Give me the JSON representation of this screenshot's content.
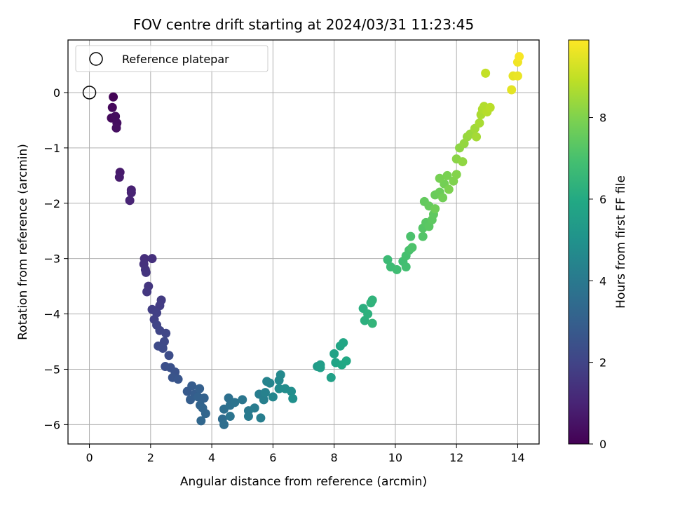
{
  "chart_data": {
    "type": "scatter",
    "title": "FOV centre drift starting at 2024/03/31 11:23:45",
    "xlabel": "Angular distance from reference (arcmin)",
    "ylabel": "Rotation from reference (arcmin)",
    "xlim": [
      -0.7,
      14.7
    ],
    "ylim": [
      -6.35,
      0.95
    ],
    "xticks": [
      0,
      2,
      4,
      6,
      8,
      10,
      12,
      14
    ],
    "yticks": [
      -6,
      -5,
      -4,
      -3,
      -2,
      -1,
      0
    ],
    "grid": true,
    "legend": {
      "placement": "top-left",
      "entries": [
        {
          "label": "Reference platepar",
          "marker": "open-circle"
        }
      ]
    },
    "reference_point": {
      "x": 0,
      "y": 0
    },
    "colorbar": {
      "label": "Hours from first FF file",
      "range": [
        0,
        9.9
      ],
      "ticks": [
        0,
        2,
        4,
        6,
        8
      ],
      "colormap": "viridis"
    },
    "series": [
      {
        "points": [
          {
            "x": 0.78,
            "y": -0.08,
            "h": 0.1
          },
          {
            "x": 0.75,
            "y": -0.27,
            "h": 0.2
          },
          {
            "x": 0.72,
            "y": -0.46,
            "h": 0.25
          },
          {
            "x": 0.85,
            "y": -0.43,
            "h": 0.3
          },
          {
            "x": 0.9,
            "y": -0.55,
            "h": 0.35
          },
          {
            "x": 0.88,
            "y": -0.64,
            "h": 0.4
          },
          {
            "x": 1.0,
            "y": -1.44,
            "h": 0.7
          },
          {
            "x": 0.98,
            "y": -1.53,
            "h": 0.75
          },
          {
            "x": 1.37,
            "y": -1.76,
            "h": 0.9
          },
          {
            "x": 1.37,
            "y": -1.81,
            "h": 0.95
          },
          {
            "x": 1.32,
            "y": -1.95,
            "h": 1.0
          },
          {
            "x": 1.8,
            "y": -3.0,
            "h": 1.3
          },
          {
            "x": 2.05,
            "y": -3.0,
            "h": 1.35
          },
          {
            "x": 1.78,
            "y": -3.1,
            "h": 1.4
          },
          {
            "x": 1.83,
            "y": -3.2,
            "h": 1.45
          },
          {
            "x": 1.85,
            "y": -3.25,
            "h": 1.5
          },
          {
            "x": 1.93,
            "y": -3.5,
            "h": 1.55
          },
          {
            "x": 1.88,
            "y": -3.6,
            "h": 1.6
          },
          {
            "x": 2.35,
            "y": -3.75,
            "h": 1.7
          },
          {
            "x": 2.3,
            "y": -3.85,
            "h": 1.75
          },
          {
            "x": 2.05,
            "y": -3.92,
            "h": 1.8
          },
          {
            "x": 2.2,
            "y": -3.98,
            "h": 1.85
          },
          {
            "x": 2.12,
            "y": -4.1,
            "h": 1.9
          },
          {
            "x": 2.2,
            "y": -4.2,
            "h": 2.0
          },
          {
            "x": 2.3,
            "y": -4.3,
            "h": 2.05
          },
          {
            "x": 2.5,
            "y": -4.35,
            "h": 2.1
          },
          {
            "x": 2.45,
            "y": -4.5,
            "h": 2.15
          },
          {
            "x": 2.25,
            "y": -4.58,
            "h": 2.2
          },
          {
            "x": 2.4,
            "y": -4.62,
            "h": 2.25
          },
          {
            "x": 2.6,
            "y": -4.75,
            "h": 2.3
          },
          {
            "x": 2.48,
            "y": -4.95,
            "h": 2.4
          },
          {
            "x": 2.65,
            "y": -4.97,
            "h": 2.45
          },
          {
            "x": 2.8,
            "y": -5.05,
            "h": 2.5
          },
          {
            "x": 2.72,
            "y": -5.15,
            "h": 2.55
          },
          {
            "x": 2.9,
            "y": -5.18,
            "h": 2.6
          },
          {
            "x": 3.2,
            "y": -5.4,
            "h": 2.8
          },
          {
            "x": 3.35,
            "y": -5.3,
            "h": 2.85
          },
          {
            "x": 3.45,
            "y": -5.45,
            "h": 2.9
          },
          {
            "x": 3.3,
            "y": -5.55,
            "h": 2.95
          },
          {
            "x": 3.6,
            "y": -5.35,
            "h": 3.0
          },
          {
            "x": 3.55,
            "y": -5.5,
            "h": 3.05
          },
          {
            "x": 3.75,
            "y": -5.52,
            "h": 3.1
          },
          {
            "x": 3.62,
            "y": -5.65,
            "h": 3.15
          },
          {
            "x": 3.7,
            "y": -5.7,
            "h": 3.2
          },
          {
            "x": 3.8,
            "y": -5.8,
            "h": 3.25
          },
          {
            "x": 3.65,
            "y": -5.93,
            "h": 3.3
          },
          {
            "x": 4.35,
            "y": -5.9,
            "h": 3.5
          },
          {
            "x": 4.4,
            "y": -6.0,
            "h": 3.55
          },
          {
            "x": 4.4,
            "y": -5.72,
            "h": 3.6
          },
          {
            "x": 4.55,
            "y": -5.52,
            "h": 3.65
          },
          {
            "x": 4.6,
            "y": -5.65,
            "h": 3.7
          },
          {
            "x": 4.75,
            "y": -5.6,
            "h": 3.75
          },
          {
            "x": 4.6,
            "y": -5.85,
            "h": 3.8
          },
          {
            "x": 5.0,
            "y": -5.55,
            "h": 3.9
          },
          {
            "x": 5.2,
            "y": -5.75,
            "h": 4.0
          },
          {
            "x": 5.2,
            "y": -5.85,
            "h": 4.05
          },
          {
            "x": 5.4,
            "y": -5.7,
            "h": 4.1
          },
          {
            "x": 5.55,
            "y": -5.45,
            "h": 4.15
          },
          {
            "x": 5.6,
            "y": -5.88,
            "h": 4.2
          },
          {
            "x": 5.7,
            "y": -5.55,
            "h": 4.25
          },
          {
            "x": 5.75,
            "y": -5.42,
            "h": 4.3
          },
          {
            "x": 5.8,
            "y": -5.22,
            "h": 4.4
          },
          {
            "x": 5.9,
            "y": -5.25,
            "h": 4.45
          },
          {
            "x": 6.0,
            "y": -5.5,
            "h": 4.5
          },
          {
            "x": 6.2,
            "y": -5.2,
            "h": 4.6
          },
          {
            "x": 6.25,
            "y": -5.1,
            "h": 4.65
          },
          {
            "x": 6.2,
            "y": -5.35,
            "h": 4.7
          },
          {
            "x": 6.4,
            "y": -5.35,
            "h": 4.8
          },
          {
            "x": 6.6,
            "y": -5.4,
            "h": 4.85
          },
          {
            "x": 6.65,
            "y": -5.53,
            "h": 4.9
          },
          {
            "x": 7.45,
            "y": -4.95,
            "h": 5.4
          },
          {
            "x": 7.55,
            "y": -4.92,
            "h": 5.45
          },
          {
            "x": 7.55,
            "y": -4.97,
            "h": 5.5
          },
          {
            "x": 7.9,
            "y": -5.15,
            "h": 5.6
          },
          {
            "x": 8.0,
            "y": -4.72,
            "h": 5.7
          },
          {
            "x": 8.05,
            "y": -4.88,
            "h": 5.75
          },
          {
            "x": 8.2,
            "y": -4.58,
            "h": 5.8
          },
          {
            "x": 8.3,
            "y": -4.52,
            "h": 5.85
          },
          {
            "x": 8.25,
            "y": -4.92,
            "h": 5.9
          },
          {
            "x": 8.4,
            "y": -4.85,
            "h": 5.95
          },
          {
            "x": 8.95,
            "y": -3.9,
            "h": 6.2
          },
          {
            "x": 9.0,
            "y": -4.12,
            "h": 6.25
          },
          {
            "x": 9.1,
            "y": -4.0,
            "h": 6.3
          },
          {
            "x": 9.2,
            "y": -3.8,
            "h": 6.35
          },
          {
            "x": 9.25,
            "y": -3.75,
            "h": 6.4
          },
          {
            "x": 9.25,
            "y": -4.17,
            "h": 6.45
          },
          {
            "x": 9.75,
            "y": -3.02,
            "h": 6.7
          },
          {
            "x": 9.85,
            "y": -3.15,
            "h": 6.75
          },
          {
            "x": 10.05,
            "y": -3.2,
            "h": 6.8
          },
          {
            "x": 10.25,
            "y": -3.05,
            "h": 6.85
          },
          {
            "x": 10.35,
            "y": -3.15,
            "h": 6.9
          },
          {
            "x": 10.35,
            "y": -2.95,
            "h": 6.95
          },
          {
            "x": 10.45,
            "y": -2.85,
            "h": 7.0
          },
          {
            "x": 10.5,
            "y": -2.6,
            "h": 7.05
          },
          {
            "x": 10.55,
            "y": -2.8,
            "h": 7.1
          },
          {
            "x": 10.9,
            "y": -2.6,
            "h": 7.2
          },
          {
            "x": 10.9,
            "y": -2.45,
            "h": 7.25
          },
          {
            "x": 11.0,
            "y": -2.35,
            "h": 7.3
          },
          {
            "x": 11.1,
            "y": -2.42,
            "h": 7.35
          },
          {
            "x": 11.2,
            "y": -2.3,
            "h": 7.4
          },
          {
            "x": 11.25,
            "y": -2.2,
            "h": 7.45
          },
          {
            "x": 10.95,
            "y": -1.97,
            "h": 7.5
          },
          {
            "x": 11.1,
            "y": -2.05,
            "h": 7.55
          },
          {
            "x": 11.3,
            "y": -1.85,
            "h": 7.6
          },
          {
            "x": 11.45,
            "y": -1.8,
            "h": 7.65
          },
          {
            "x": 11.3,
            "y": -2.1,
            "h": 7.7
          },
          {
            "x": 11.55,
            "y": -1.9,
            "h": 7.75
          },
          {
            "x": 11.6,
            "y": -1.65,
            "h": 7.8
          },
          {
            "x": 11.45,
            "y": -1.55,
            "h": 7.85
          },
          {
            "x": 11.7,
            "y": -1.5,
            "h": 7.9
          },
          {
            "x": 11.75,
            "y": -1.75,
            "h": 7.95
          },
          {
            "x": 11.9,
            "y": -1.6,
            "h": 8.0
          },
          {
            "x": 12.0,
            "y": -1.48,
            "h": 8.05
          },
          {
            "x": 12.0,
            "y": -1.2,
            "h": 8.15
          },
          {
            "x": 12.1,
            "y": -1.0,
            "h": 8.2
          },
          {
            "x": 12.2,
            "y": -1.25,
            "h": 8.25
          },
          {
            "x": 12.25,
            "y": -0.92,
            "h": 8.3
          },
          {
            "x": 12.35,
            "y": -0.8,
            "h": 8.35
          },
          {
            "x": 12.45,
            "y": -0.75,
            "h": 8.4
          },
          {
            "x": 12.6,
            "y": -0.65,
            "h": 8.5
          },
          {
            "x": 12.65,
            "y": -0.8,
            "h": 8.55
          },
          {
            "x": 12.75,
            "y": -0.55,
            "h": 8.6
          },
          {
            "x": 12.8,
            "y": -0.4,
            "h": 8.65
          },
          {
            "x": 12.85,
            "y": -0.3,
            "h": 8.7
          },
          {
            "x": 12.9,
            "y": -0.25,
            "h": 8.75
          },
          {
            "x": 13.0,
            "y": -0.35,
            "h": 8.8
          },
          {
            "x": 13.1,
            "y": -0.27,
            "h": 8.85
          },
          {
            "x": 12.95,
            "y": 0.35,
            "h": 9.0
          },
          {
            "x": 13.8,
            "y": 0.05,
            "h": 9.5
          },
          {
            "x": 13.85,
            "y": 0.3,
            "h": 9.55
          },
          {
            "x": 14.0,
            "y": 0.3,
            "h": 9.6
          },
          {
            "x": 14.0,
            "y": 0.55,
            "h": 9.7
          },
          {
            "x": 14.05,
            "y": 0.65,
            "h": 9.8
          }
        ]
      }
    ]
  }
}
